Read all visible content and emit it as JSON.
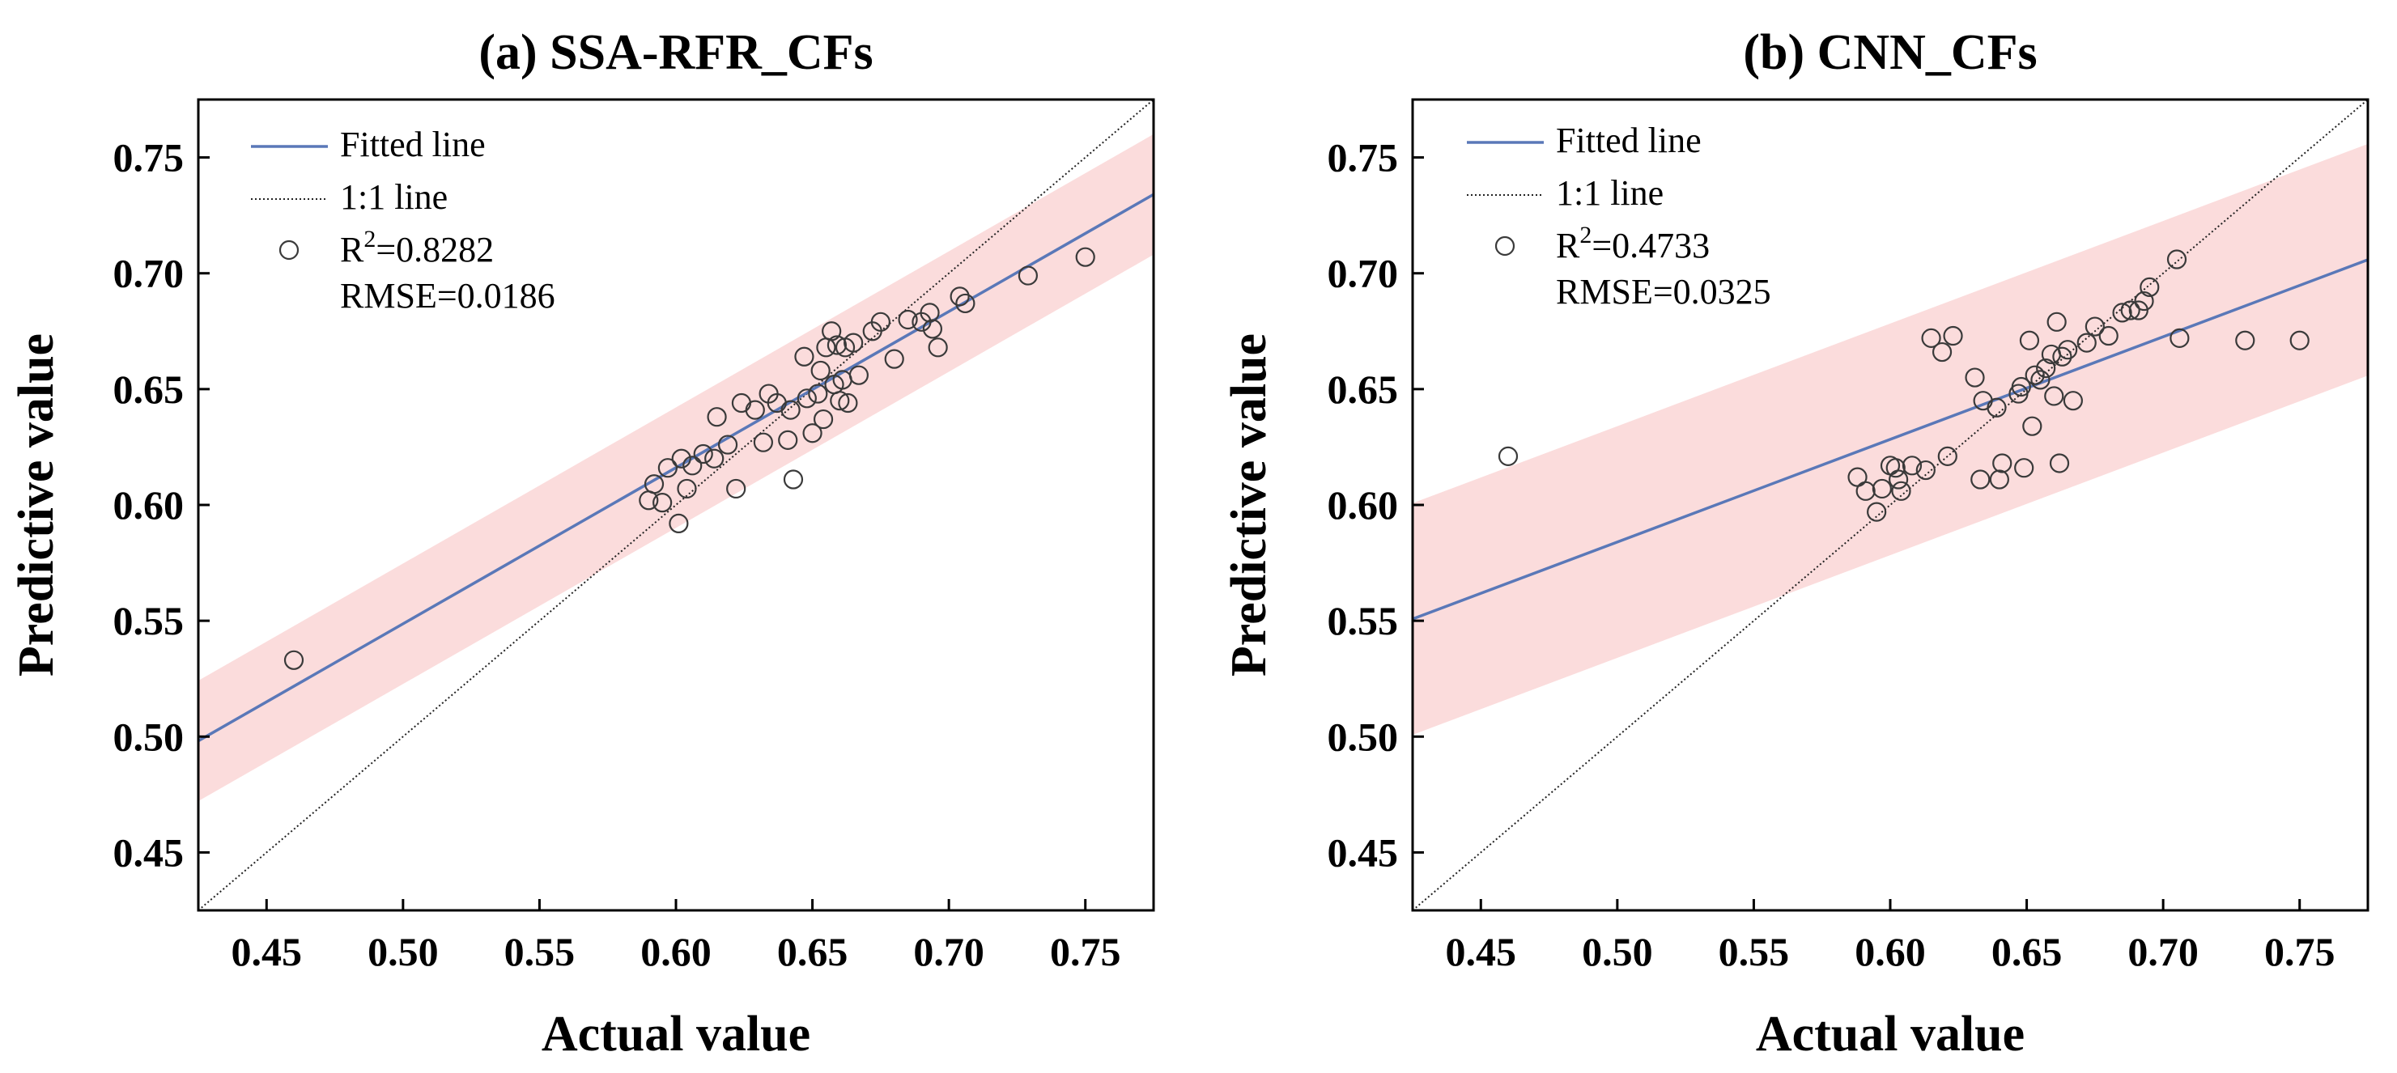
{
  "chart_data": [
    {
      "type": "scatter",
      "title": "(a) SSA-RFR_CFs",
      "xlabel": "Actual value",
      "ylabel": "Predictive value",
      "xlim": [
        0.425,
        0.775
      ],
      "ylim": [
        0.425,
        0.775
      ],
      "xticks": [
        "0.45",
        "0.50",
        "0.55",
        "0.60",
        "0.65",
        "0.70",
        "0.75"
      ],
      "yticks": [
        "0.45",
        "0.50",
        "0.55",
        "0.60",
        "0.65",
        "0.70",
        "0.75"
      ],
      "fit": {
        "slope": 0.674,
        "intercept": 0.2117
      },
      "band_halfwidth": 0.026,
      "legend": {
        "fitted": "Fitted line",
        "oneone": "1:1 line",
        "r2_prefix": "R",
        "r2_sup": "2",
        "r2_value": "=0.8282",
        "rmse": "RMSE=0.0186"
      },
      "colors": {
        "fit": "#5a78b8",
        "band": "#fbdcdc",
        "points": "#3a3a3a",
        "oneone": "#222222"
      },
      "points": [
        [
          0.46,
          0.533
        ],
        [
          0.59,
          0.602
        ],
        [
          0.592,
          0.609
        ],
        [
          0.595,
          0.601
        ],
        [
          0.597,
          0.616
        ],
        [
          0.601,
          0.592
        ],
        [
          0.602,
          0.62
        ],
        [
          0.604,
          0.607
        ],
        [
          0.606,
          0.617
        ],
        [
          0.61,
          0.622
        ],
        [
          0.614,
          0.62
        ],
        [
          0.615,
          0.638
        ],
        [
          0.619,
          0.626
        ],
        [
          0.622,
          0.607
        ],
        [
          0.624,
          0.644
        ],
        [
          0.629,
          0.641
        ],
        [
          0.632,
          0.627
        ],
        [
          0.634,
          0.648
        ],
        [
          0.637,
          0.644
        ],
        [
          0.641,
          0.628
        ],
        [
          0.642,
          0.641
        ],
        [
          0.643,
          0.611
        ],
        [
          0.647,
          0.664
        ],
        [
          0.648,
          0.646
        ],
        [
          0.65,
          0.631
        ],
        [
          0.652,
          0.648
        ],
        [
          0.653,
          0.658
        ],
        [
          0.654,
          0.637
        ],
        [
          0.655,
          0.668
        ],
        [
          0.657,
          0.675
        ],
        [
          0.658,
          0.652
        ],
        [
          0.659,
          0.669
        ],
        [
          0.66,
          0.645
        ],
        [
          0.661,
          0.654
        ],
        [
          0.662,
          0.668
        ],
        [
          0.663,
          0.644
        ],
        [
          0.665,
          0.67
        ],
        [
          0.667,
          0.656
        ],
        [
          0.672,
          0.675
        ],
        [
          0.675,
          0.679
        ],
        [
          0.68,
          0.663
        ],
        [
          0.685,
          0.68
        ],
        [
          0.69,
          0.679
        ],
        [
          0.693,
          0.683
        ],
        [
          0.694,
          0.676
        ],
        [
          0.696,
          0.668
        ],
        [
          0.704,
          0.69
        ],
        [
          0.706,
          0.687
        ],
        [
          0.729,
          0.699
        ],
        [
          0.75,
          0.707
        ]
      ]
    },
    {
      "type": "scatter",
      "title": "(b) CNN_CFs",
      "xlabel": "Actual value",
      "ylabel": "Predictive value",
      "xlim": [
        0.425,
        0.775
      ],
      "ylim": [
        0.425,
        0.775
      ],
      "xticks": [
        "0.45",
        "0.50",
        "0.55",
        "0.60",
        "0.65",
        "0.70",
        "0.75"
      ],
      "yticks": [
        "0.45",
        "0.50",
        "0.55",
        "0.60",
        "0.65",
        "0.70",
        "0.75"
      ],
      "fit": {
        "slope": 0.443,
        "intercept": 0.3625
      },
      "band_halfwidth": 0.05,
      "legend": {
        "fitted": "Fitted line",
        "oneone": "1:1 line",
        "r2_prefix": "R",
        "r2_sup": "2",
        "r2_value": "=0.4733",
        "rmse": "RMSE=0.0325"
      },
      "colors": {
        "fit": "#5a78b8",
        "band": "#fbdcdc",
        "points": "#3a3a3a",
        "oneone": "#222222"
      },
      "points": [
        [
          0.46,
          0.621
        ],
        [
          0.588,
          0.612
        ],
        [
          0.591,
          0.606
        ],
        [
          0.595,
          0.597
        ],
        [
          0.597,
          0.607
        ],
        [
          0.6,
          0.617
        ],
        [
          0.602,
          0.616
        ],
        [
          0.603,
          0.611
        ],
        [
          0.604,
          0.606
        ],
        [
          0.608,
          0.617
        ],
        [
          0.613,
          0.615
        ],
        [
          0.615,
          0.672
        ],
        [
          0.619,
          0.666
        ],
        [
          0.621,
          0.621
        ],
        [
          0.623,
          0.673
        ],
        [
          0.631,
          0.655
        ],
        [
          0.633,
          0.611
        ],
        [
          0.634,
          0.645
        ],
        [
          0.639,
          0.642
        ],
        [
          0.64,
          0.611
        ],
        [
          0.641,
          0.618
        ],
        [
          0.647,
          0.648
        ],
        [
          0.648,
          0.651
        ],
        [
          0.649,
          0.616
        ],
        [
          0.651,
          0.671
        ],
        [
          0.652,
          0.634
        ],
        [
          0.653,
          0.656
        ],
        [
          0.655,
          0.654
        ],
        [
          0.657,
          0.659
        ],
        [
          0.659,
          0.665
        ],
        [
          0.66,
          0.647
        ],
        [
          0.661,
          0.679
        ],
        [
          0.662,
          0.618
        ],
        [
          0.663,
          0.664
        ],
        [
          0.665,
          0.667
        ],
        [
          0.667,
          0.645
        ],
        [
          0.672,
          0.67
        ],
        [
          0.675,
          0.677
        ],
        [
          0.68,
          0.673
        ],
        [
          0.685,
          0.683
        ],
        [
          0.688,
          0.684
        ],
        [
          0.691,
          0.684
        ],
        [
          0.693,
          0.688
        ],
        [
          0.695,
          0.694
        ],
        [
          0.705,
          0.706
        ],
        [
          0.706,
          0.672
        ],
        [
          0.73,
          0.671
        ],
        [
          0.75,
          0.671
        ]
      ]
    }
  ]
}
